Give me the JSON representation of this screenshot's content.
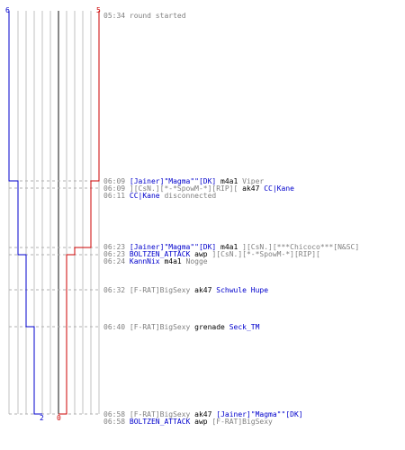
{
  "colors": {
    "ct": "#0000cc",
    "t": "#cc0000",
    "grid": "#c0c0c0",
    "divider": "#606060",
    "dash": "#b0b0b0",
    "time": "#808080"
  },
  "timeline": {
    "ct_start_count": "6",
    "t_start_count": "5",
    "ct_end_count": "2",
    "t_end_count": "0"
  },
  "events": [
    {
      "time": "05:34",
      "parts": [
        {
          "text": "round started",
          "team": "sys"
        }
      ]
    },
    {
      "time": "06:09",
      "parts": [
        {
          "text": "[Jainer]\"Magma\"\"[DK]",
          "team": "ct"
        },
        {
          "text": " m4a1 ",
          "team": "neutral"
        },
        {
          "text": "Viper",
          "team": "t"
        }
      ]
    },
    {
      "time": "06:09",
      "parts": [
        {
          "text": "][CsN.][*-*SpowM-*][RIP][",
          "team": "t"
        },
        {
          "text": " ak47 ",
          "team": "neutral"
        },
        {
          "text": "CC|Kane",
          "team": "ct"
        }
      ]
    },
    {
      "time": "06:11",
      "parts": [
        {
          "text": "CC|Kane",
          "team": "ct"
        },
        {
          "text": " disconnected",
          "team": "sys"
        }
      ]
    },
    {
      "time": "06:23",
      "parts": [
        {
          "text": "[Jainer]\"Magma\"\"[DK]",
          "team": "ct"
        },
        {
          "text": " m4a1 ",
          "team": "neutral"
        },
        {
          "text": "][CsN.][***Chicoco***[N&SC]",
          "team": "t"
        }
      ]
    },
    {
      "time": "06:23",
      "parts": [
        {
          "text": "BOLTZEN_ATTACK",
          "team": "ct"
        },
        {
          "text": " awp ",
          "team": "neutral"
        },
        {
          "text": "][CsN.][*-*SpowM-*][RIP][",
          "team": "t"
        }
      ]
    },
    {
      "time": "06:24",
      "parts": [
        {
          "text": "KannNix",
          "team": "ct"
        },
        {
          "text": " m4a1 ",
          "team": "neutral"
        },
        {
          "text": "Nogge",
          "team": "t"
        }
      ]
    },
    {
      "time": "06:32",
      "parts": [
        {
          "text": "[F-RAT]BigSexy",
          "team": "t"
        },
        {
          "text": " ak47 ",
          "team": "neutral"
        },
        {
          "text": "Schwule Hupe",
          "team": "ct"
        }
      ]
    },
    {
      "time": "06:40",
      "parts": [
        {
          "text": "[F-RAT]BigSexy",
          "team": "t"
        },
        {
          "text": " grenade ",
          "team": "neutral"
        },
        {
          "text": "Seck_TM",
          "team": "ct"
        }
      ]
    },
    {
      "time": "06:58",
      "parts": [
        {
          "text": "[F-RAT]BigSexy",
          "team": "t"
        },
        {
          "text": " ak47 ",
          "team": "neutral"
        },
        {
          "text": "[Jainer]\"Magma\"\"[DK]",
          "team": "ct"
        }
      ]
    },
    {
      "time": "06:58",
      "parts": [
        {
          "text": "BOLTZEN_ATTACK",
          "team": "ct"
        },
        {
          "text": " awp ",
          "team": "neutral"
        },
        {
          "text": "[F-RAT]BigSexy",
          "team": "t"
        }
      ]
    }
  ]
}
